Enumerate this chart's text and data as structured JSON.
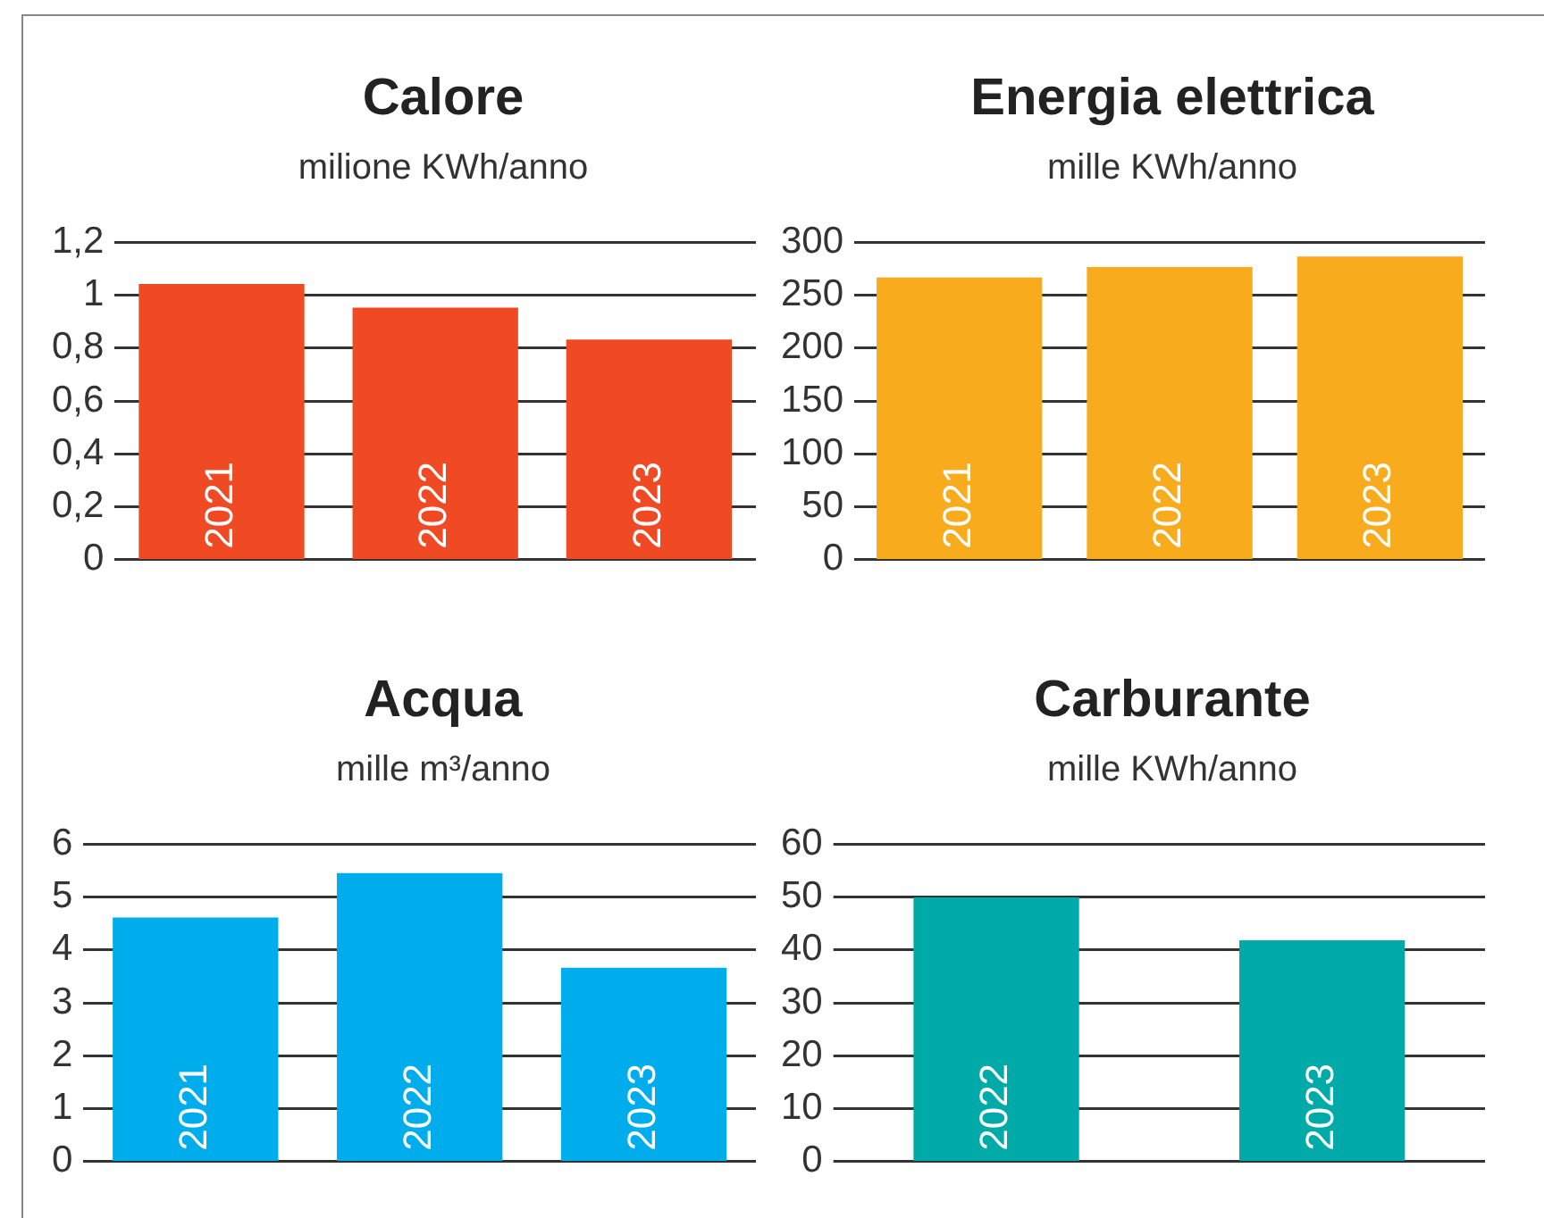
{
  "chart_data": [
    {
      "type": "bar",
      "title": "Calore",
      "subtitle": "milione KWh/anno",
      "categories": [
        "2021",
        "2022",
        "2023"
      ],
      "values": [
        1.04,
        0.95,
        0.83
      ],
      "color": "#ef4a23",
      "ylim": [
        0,
        1.2
      ],
      "yticks": [
        0,
        {
          "value": 0.2,
          "label": "0,2"
        },
        {
          "value": 0.4,
          "label": "0,4"
        },
        {
          "value": 0.6,
          "label": "0,6"
        },
        {
          "value": 0.8,
          "label": "0,8"
        },
        1,
        {
          "value": 1.2,
          "label": "1,2"
        }
      ],
      "grid": "y"
    },
    {
      "type": "bar",
      "title": "Energia elettrica",
      "subtitle": "mille KWh/anno",
      "categories": [
        "2021",
        "2022",
        "2023"
      ],
      "values": [
        266,
        276,
        286
      ],
      "color": "#f8ab1d",
      "ylim": [
        0,
        300
      ],
      "yticks": [
        0,
        50,
        100,
        150,
        200,
        250,
        300
      ],
      "grid": "y"
    },
    {
      "type": "bar",
      "title": "Acqua",
      "subtitle": "mille m³/anno",
      "categories": [
        "2021",
        "2022",
        "2023"
      ],
      "values": [
        4.6,
        5.44,
        3.65
      ],
      "color": "#00adec",
      "ylim": [
        0,
        6
      ],
      "yticks": [
        0,
        1,
        2,
        3,
        4,
        5,
        6
      ],
      "grid": "y"
    },
    {
      "type": "bar",
      "title": "Carburante",
      "subtitle": "mille KWh/anno",
      "categories": [
        "2022",
        "2023"
      ],
      "values": [
        49.8,
        41.7
      ],
      "color": "#00aaa9",
      "ylim": [
        0,
        60
      ],
      "yticks": [
        0,
        10,
        20,
        30,
        40,
        50,
        60
      ],
      "grid": "y"
    }
  ]
}
